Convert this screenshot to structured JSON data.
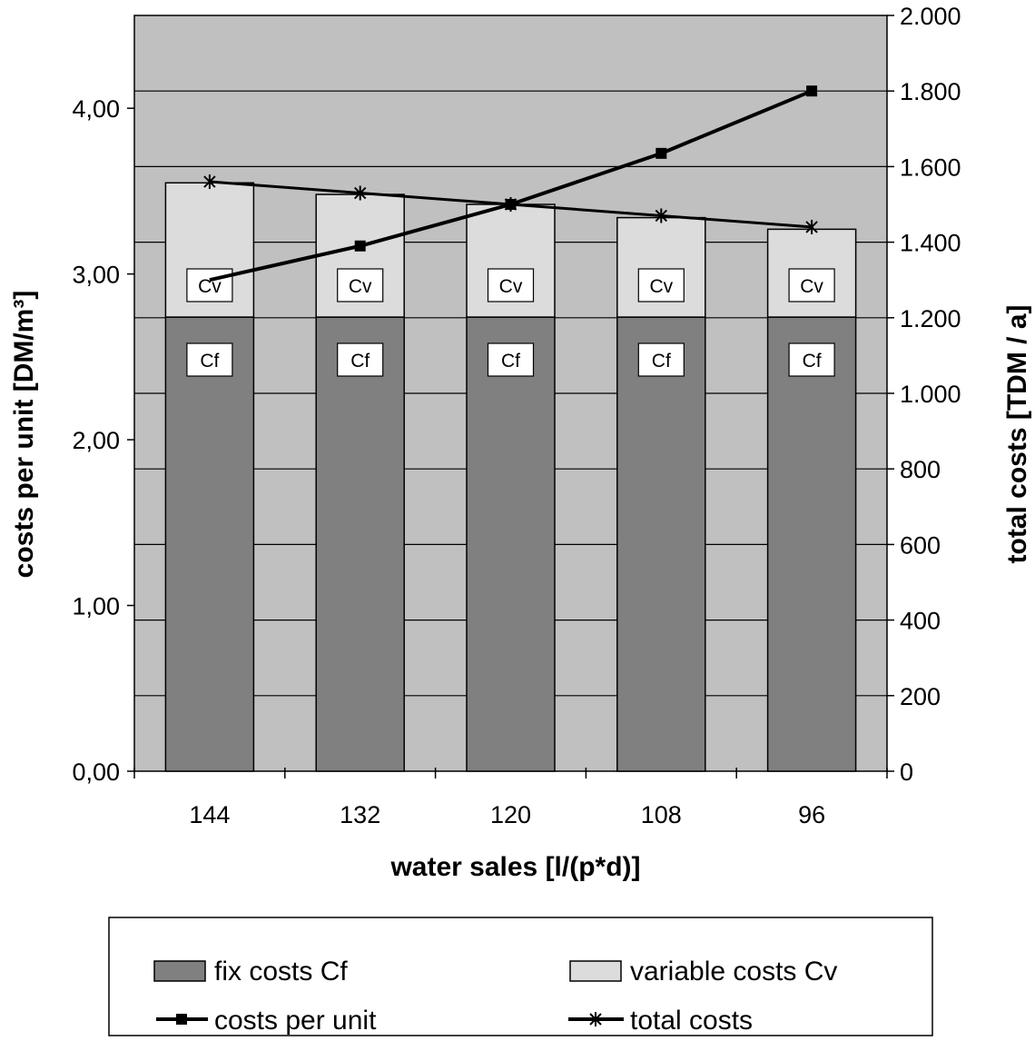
{
  "chart_data": {
    "type": "bar",
    "stacked": true,
    "xlabel": "water sales [l/(p*d)]",
    "ylabel_left": "costs per unit [DM/m³]",
    "ylabel_right": "total costs [TDM / a]",
    "categories": [
      "144",
      "132",
      "120",
      "108",
      "96"
    ],
    "y_left": {
      "min": 0,
      "max": 4.56,
      "ticks": [
        0,
        1,
        2,
        3,
        4
      ],
      "tick_labels": [
        "0,00",
        "1,00",
        "2,00",
        "3,00",
        "4,00"
      ]
    },
    "y_right": {
      "min": 0,
      "max": 2000,
      "ticks": [
        0,
        200,
        400,
        600,
        800,
        1000,
        1200,
        1400,
        1600,
        1800,
        2000
      ],
      "tick_labels": [
        "0",
        "200",
        "400",
        "600",
        "800",
        "1.000",
        "1.200",
        "1.400",
        "1.600",
        "1.800",
        "2.000"
      ]
    },
    "series": [
      {
        "name": "fix costs Cf",
        "kind": "bar",
        "axis": "left",
        "color": "#808080",
        "values": [
          2.74,
          2.74,
          2.74,
          2.74,
          2.74
        ],
        "box_label": "Cf"
      },
      {
        "name": "variable costs Cv",
        "kind": "bar",
        "axis": "left",
        "color": "#dcdcdc",
        "values": [
          0.81,
          0.74,
          0.68,
          0.6,
          0.53
        ],
        "box_label": "Cv"
      },
      {
        "name": "costs per unit",
        "kind": "line",
        "axis": "right",
        "marker": "square",
        "values": [
          1300,
          1390,
          1500,
          1635,
          1800
        ]
      },
      {
        "name": "total costs",
        "kind": "line",
        "axis": "right",
        "marker": "star",
        "values": [
          1560,
          1530,
          1500,
          1470,
          1440
        ]
      }
    ],
    "legend": {
      "position": "bottom",
      "items": [
        {
          "label": "fix costs Cf",
          "kind": "bar",
          "color": "#808080"
        },
        {
          "label": "variable costs Cv",
          "kind": "bar",
          "color": "#dcdcdc"
        },
        {
          "label": "costs per unit",
          "kind": "line",
          "marker": "square"
        },
        {
          "label": "total costs",
          "kind": "line",
          "marker": "star"
        }
      ]
    },
    "colors": {
      "plot_background": "#c0c0c0",
      "grid": "#000000"
    },
    "grid": true
  }
}
